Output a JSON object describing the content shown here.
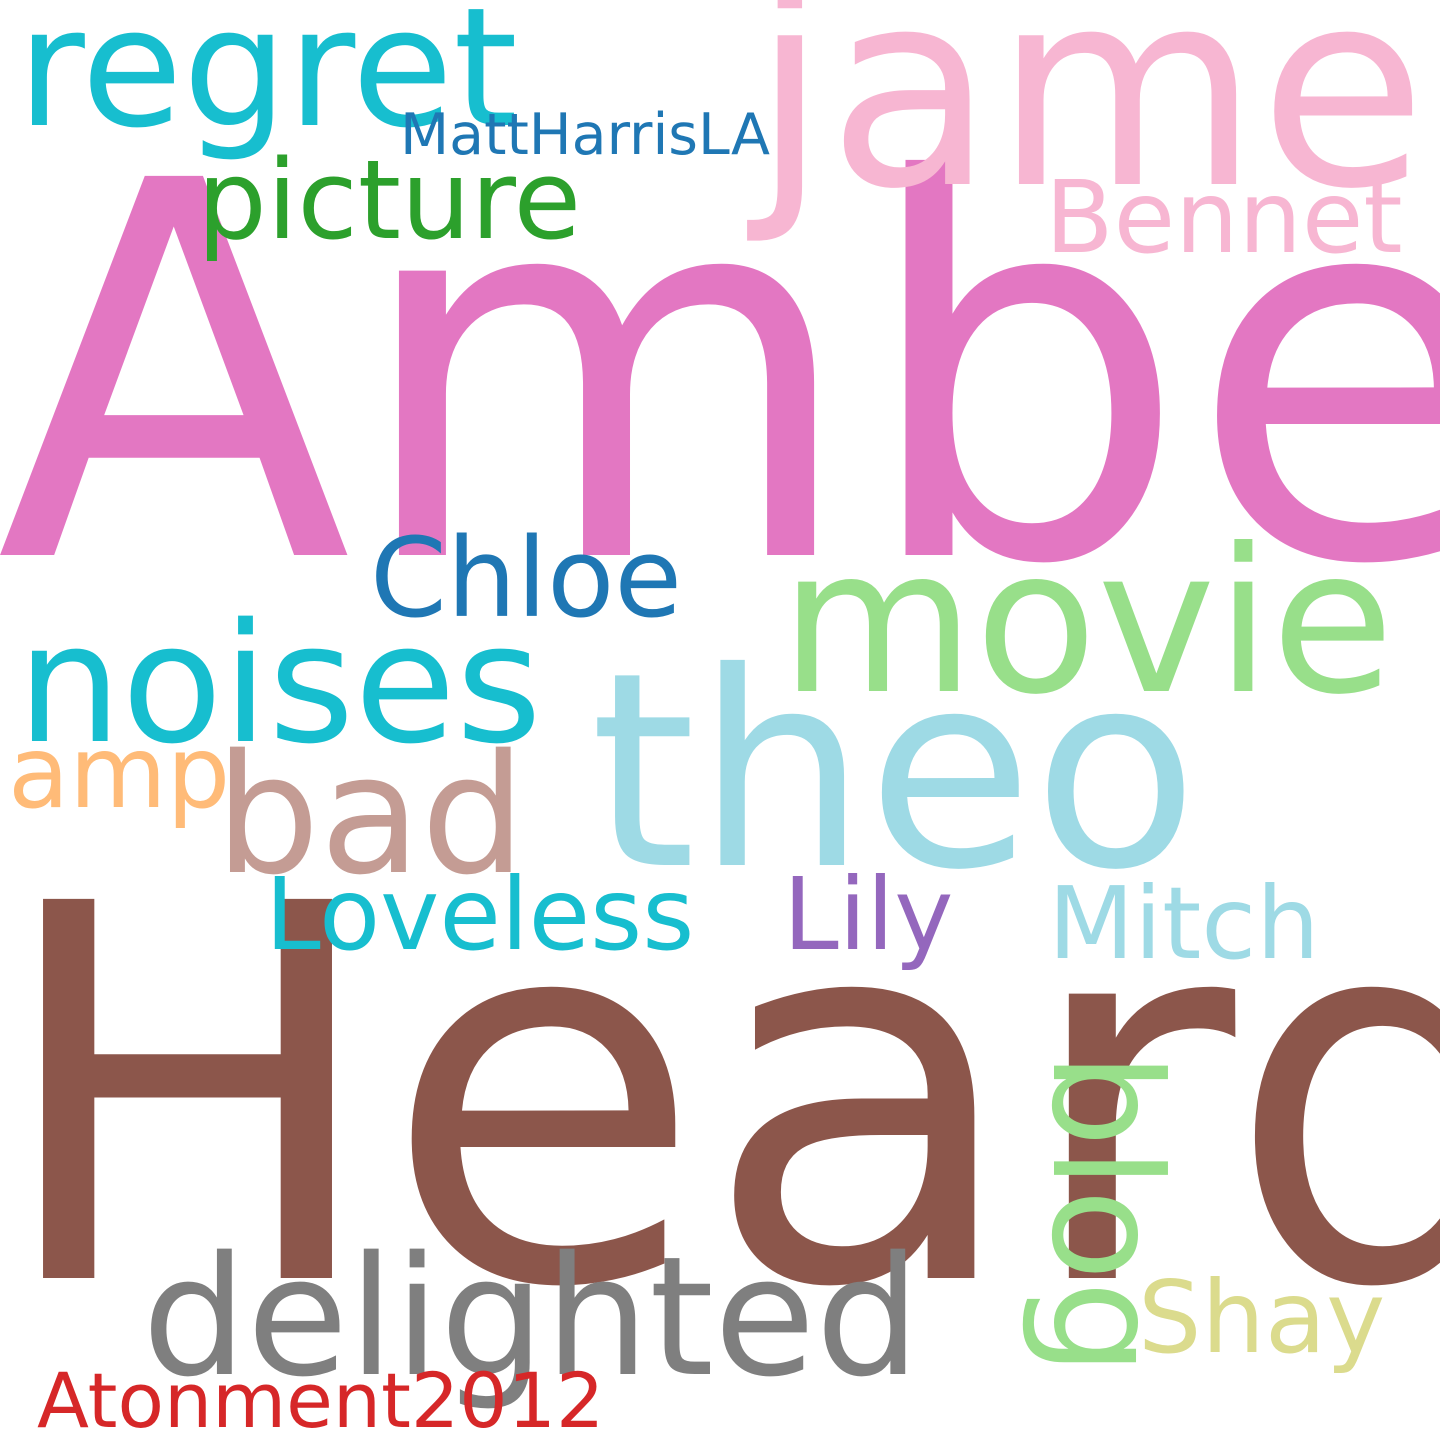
{
  "words": {
    "amber": {
      "text": "Amber",
      "color": "#e377c2"
    },
    "heard": {
      "text": "Heard",
      "color": "#8c564b"
    },
    "james": {
      "text": "james",
      "color": "#f7b6d2"
    },
    "theo": {
      "text": "theo",
      "color": "#9edae5"
    },
    "movie": {
      "text": "movie",
      "color": "#98df8a"
    },
    "noises": {
      "text": "noises",
      "color": "#17becf"
    },
    "regret": {
      "text": "regret",
      "color": "#17becf"
    },
    "bad": {
      "text": "bad",
      "color": "#c49c94"
    },
    "delighted": {
      "text": "delighted",
      "color": "#7f7f7f"
    },
    "blog": {
      "text": "blog",
      "color": "#98df8a"
    },
    "picture": {
      "text": "picture",
      "color": "#2ca02c"
    },
    "chloe": {
      "text": "Chloe",
      "color": "#1f77b4"
    },
    "bennet": {
      "text": "Bennet",
      "color": "#f7b6d2"
    },
    "loveless": {
      "text": "Loveless",
      "color": "#17becf"
    },
    "mitch": {
      "text": "Mitch",
      "color": "#9edae5"
    },
    "lily": {
      "text": "Lily",
      "color": "#9467bd"
    },
    "shay": {
      "text": "Shay",
      "color": "#dbdb8d"
    },
    "amp": {
      "text": "amp",
      "color": "#ffbb78"
    },
    "matt": {
      "text": "MattHarrisLA",
      "color": "#1f77b4"
    },
    "atonement": {
      "text": "Atonment2012",
      "color": "#d62728"
    }
  }
}
